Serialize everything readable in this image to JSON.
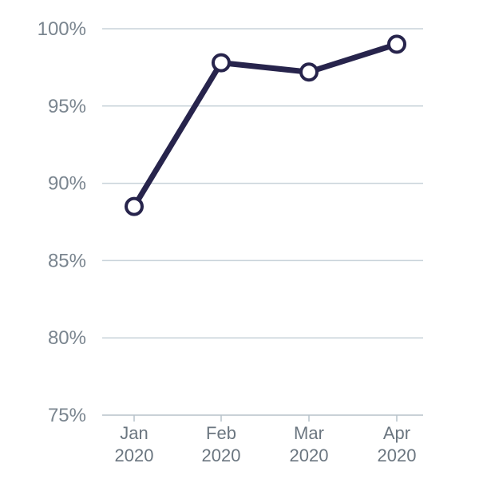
{
  "chart_data": {
    "type": "line",
    "title": "",
    "xlabel": "",
    "ylabel": "",
    "categories": [
      [
        "Jan",
        "2020"
      ],
      [
        "Feb",
        "2020"
      ],
      [
        "Mar",
        "2020"
      ],
      [
        "Apr",
        "2020"
      ]
    ],
    "values": [
      88.5,
      97.8,
      97.2,
      99.0
    ],
    "ylim": [
      75,
      100
    ],
    "yticks": [
      75,
      80,
      85,
      90,
      95,
      100
    ],
    "ytick_labels": [
      "75%",
      "80%",
      "85%",
      "90%",
      "95%",
      "100%"
    ],
    "grid": true,
    "legend": "none",
    "colors": {
      "line": "#27244c",
      "point_fill": "#ffffff"
    }
  }
}
